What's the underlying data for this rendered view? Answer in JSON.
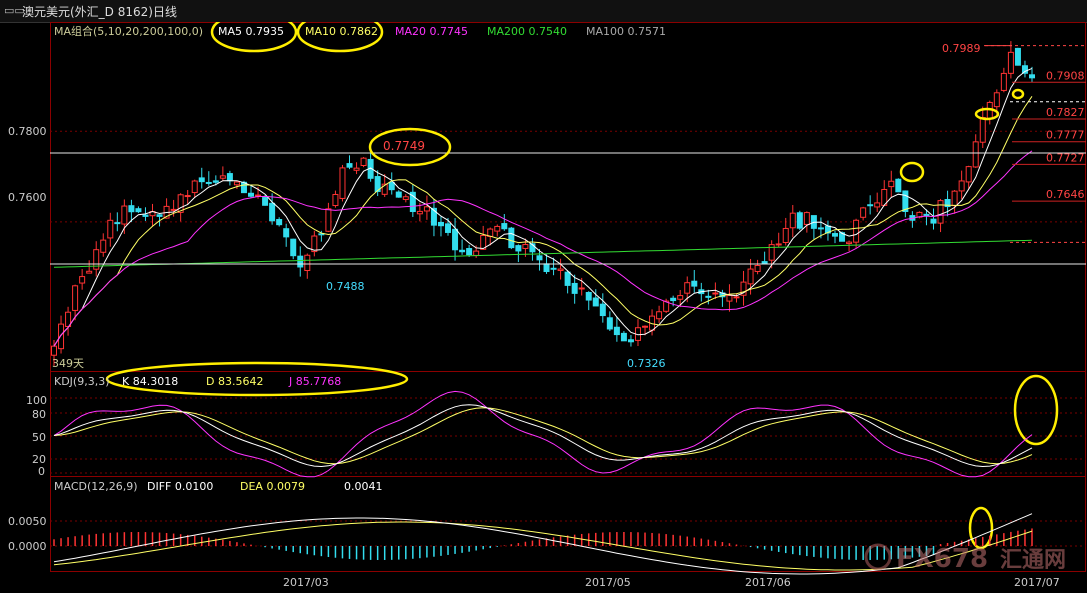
{
  "window": {
    "title": "澳元美元(外汇_D 8162)日线",
    "menu_icon": "menu-icon"
  },
  "main_panel": {
    "indicator_group": "MA组合(5,10,20,200,100,0)",
    "ma_labels": [
      {
        "name": "MA5",
        "value": "0.7935",
        "color": "#ffffff"
      },
      {
        "name": "MA10",
        "value": "0.7862",
        "color": "#ffff66"
      },
      {
        "name": "MA20",
        "value": "0.7745",
        "color": "#ff33ff"
      },
      {
        "name": "MA200",
        "value": "0.7540",
        "color": "#33dd33"
      },
      {
        "name": "MA100",
        "value": "0.7571",
        "color": "#aaaaaa"
      }
    ],
    "y_ticks": [
      "0.7800",
      "0.7600"
    ],
    "annotations": {
      "high_march": "0.7749",
      "low_march": "0.7488",
      "low_may": "0.7326",
      "recent_high": "0.7989",
      "days_label": "349天"
    },
    "right_levels": [
      "0.7908",
      "0.7827",
      "0.7777",
      "0.7727",
      "0.7646"
    ]
  },
  "kdj_panel": {
    "label": "KDJ(9,3,3)",
    "k": {
      "name": "K",
      "value": "84.3018"
    },
    "d": {
      "name": "D",
      "value": "83.5642"
    },
    "j": {
      "name": "J",
      "value": "85.7768"
    },
    "y_ticks": [
      "100",
      "80",
      "50",
      "20",
      "0"
    ]
  },
  "macd_panel": {
    "label": "MACD(12,26,9)",
    "diff": {
      "name": "DIFF",
      "value": "0.0100"
    },
    "dea": {
      "name": "DEA",
      "value": "0.0079"
    },
    "macd_value": "0.0041",
    "y_ticks": [
      "0.0050",
      "0.0000"
    ]
  },
  "x_axis": [
    "2017/03",
    "2017/05",
    "2017/06",
    "2017/07"
  ],
  "watermark": {
    "text": "FX678",
    "sub": "汇通网"
  },
  "chart_data": {
    "type": "line",
    "title": "澳元美元(外汇_D 8162)日线",
    "ylim": [
      0.728,
      0.803
    ],
    "x": [
      "2017/03",
      "2017/05",
      "2017/06",
      "2017/07"
    ],
    "series": [
      {
        "name": "MA5",
        "last": 0.7935
      },
      {
        "name": "MA10",
        "last": 0.7862
      },
      {
        "name": "MA20",
        "last": 0.7745
      },
      {
        "name": "MA200",
        "last": 0.754
      },
      {
        "name": "MA100",
        "last": 0.7571
      }
    ],
    "key_prices": [
      0.7749,
      0.7488,
      0.7326,
      0.7989,
      0.7908,
      0.7827,
      0.7777,
      0.7727,
      0.7646
    ],
    "horizontal_lines": [
      0.7749,
      0.7545
    ],
    "close_path": [
      0.732,
      0.745,
      0.752,
      0.761,
      0.764,
      0.76,
      0.765,
      0.768,
      0.77,
      0.768,
      0.765,
      0.758,
      0.751,
      0.757,
      0.77,
      0.774,
      0.768,
      0.765,
      0.763,
      0.758,
      0.752,
      0.756,
      0.758,
      0.754,
      0.751,
      0.748,
      0.744,
      0.738,
      0.733,
      0.736,
      0.742,
      0.746,
      0.745,
      0.742,
      0.748,
      0.752,
      0.76,
      0.761,
      0.758,
      0.756,
      0.764,
      0.768,
      0.762,
      0.76,
      0.766,
      0.772,
      0.788,
      0.796,
      0.7935
    ]
  }
}
